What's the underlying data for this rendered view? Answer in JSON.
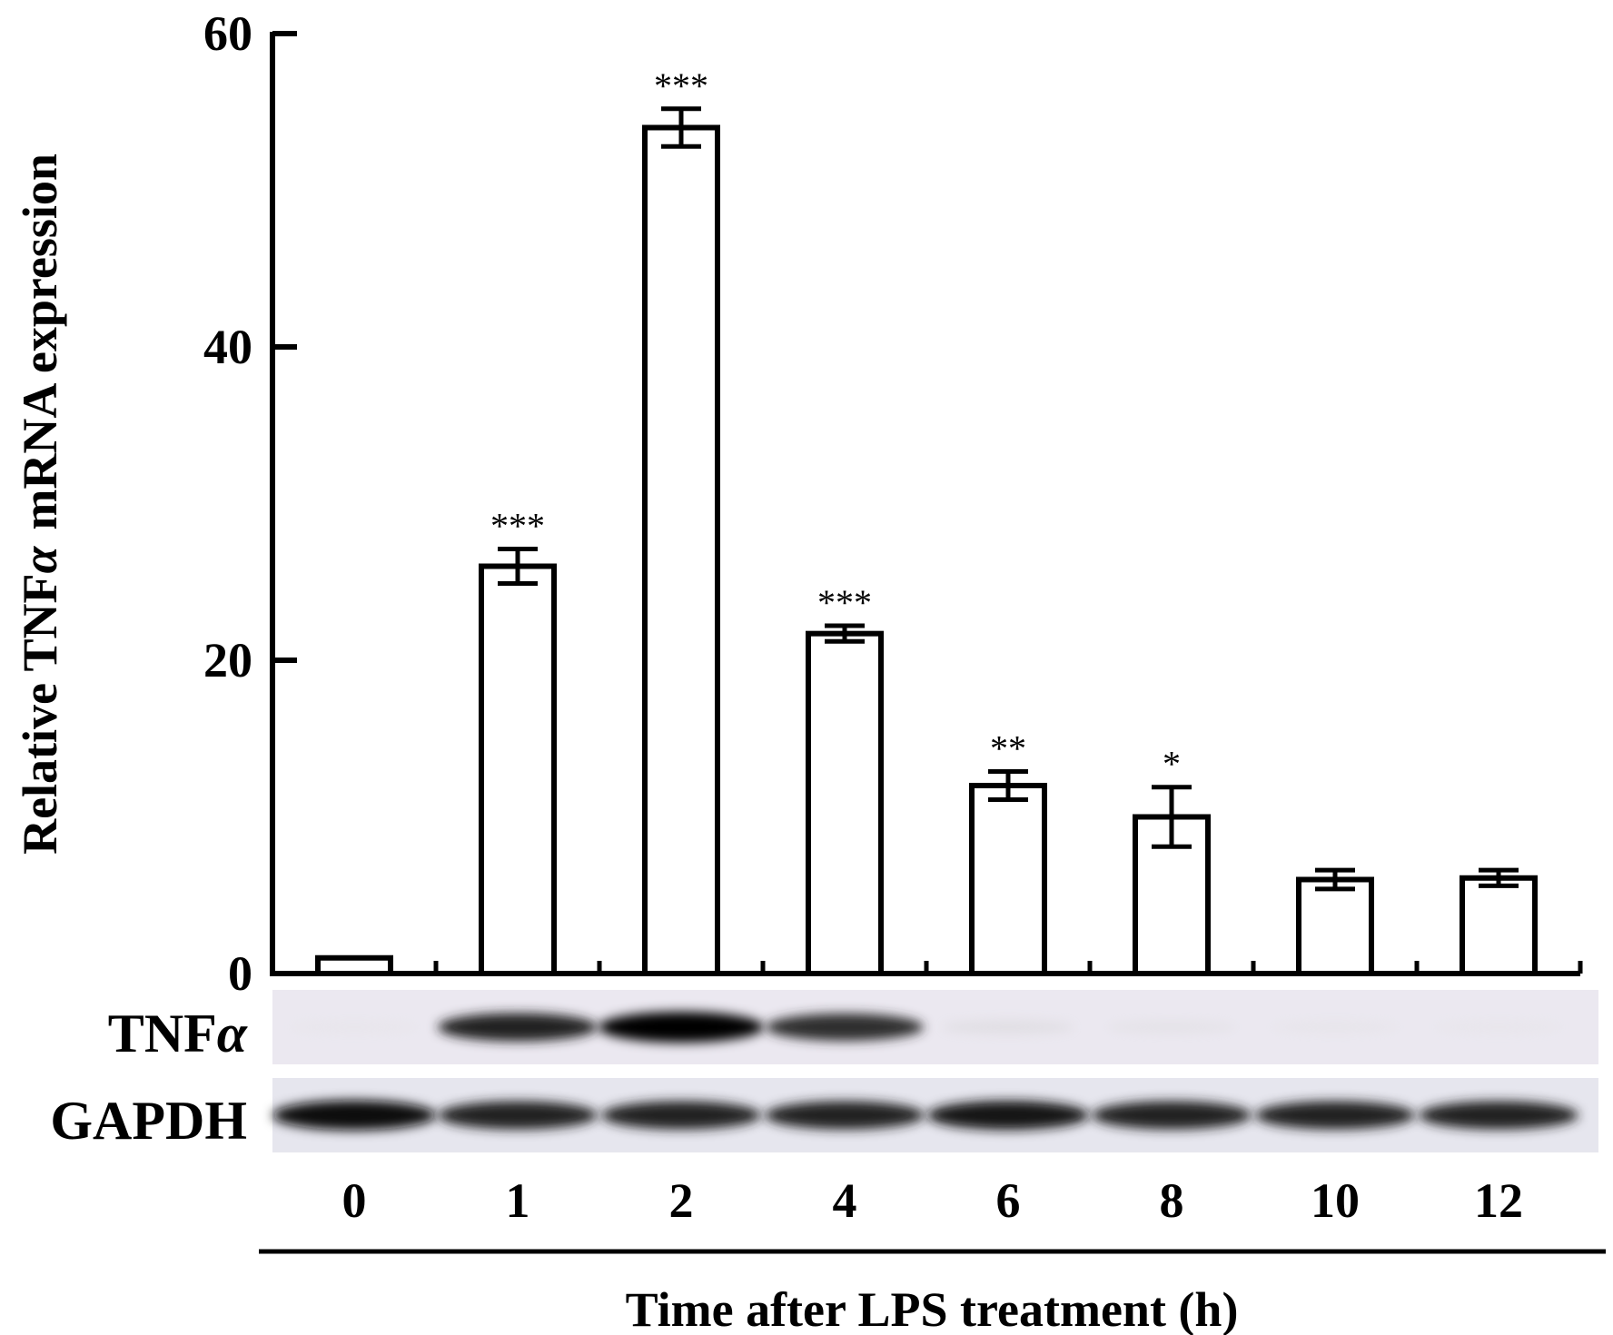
{
  "chart_data": {
    "type": "bar",
    "categories": [
      "0",
      "1",
      "2",
      "4",
      "6",
      "8",
      "10",
      "12"
    ],
    "values": [
      1,
      26,
      54,
      21.7,
      12,
      10,
      6,
      6.1
    ],
    "errors": [
      0,
      1.1,
      1.2,
      0.5,
      0.9,
      1.9,
      0.6,
      0.5
    ],
    "significance": [
      "",
      "***",
      "***",
      "***",
      "**",
      "*",
      "",
      ""
    ],
    "ylabel_main": "Relative TNF",
    "ylabel_greek": "α",
    "ylabel_rest": "mRNA expression",
    "xlabel": "Time after LPS treatment (h)",
    "ylim": [
      0,
      60
    ],
    "yticks": [
      "0",
      "20",
      "40",
      "60"
    ],
    "grid": false,
    "bar_fill": "#ffffff",
    "bar_edge": "#000000"
  },
  "blot": {
    "rows": [
      {
        "label_main": "TNF",
        "label_greek": "α",
        "intensity": [
          0.02,
          0.85,
          1.0,
          0.8,
          0.1,
          0.06,
          0.03,
          0.02
        ]
      },
      {
        "label_main": "GAPDH",
        "label_greek": "",
        "intensity": [
          0.95,
          0.85,
          0.85,
          0.85,
          0.9,
          0.85,
          0.85,
          0.85
        ]
      }
    ],
    "background": "#e9e8f0"
  }
}
